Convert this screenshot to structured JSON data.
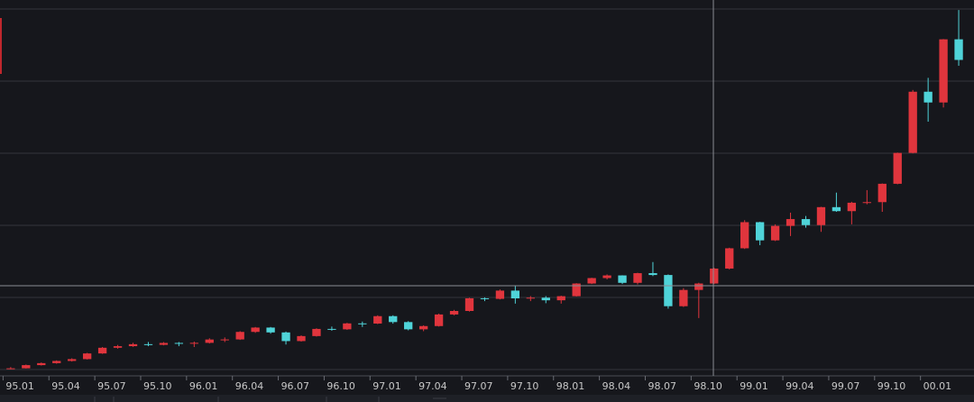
{
  "chart_data": {
    "type": "candlestick",
    "x": [
      0.5,
      1.5,
      2.5,
      3.5,
      4.5,
      5.5,
      6.5,
      7.5,
      8.5,
      9.5,
      10.5,
      11.5,
      12.5,
      13.5,
      14.5,
      15.5,
      16.5,
      17.5,
      18.5,
      19.5,
      20.5,
      21.5,
      22.5,
      23.5,
      24.5,
      25.5,
      26.5,
      27.5,
      28.5,
      29.5,
      30.5,
      31.5,
      32.5,
      33.5,
      34.5,
      35.5,
      36.5,
      37.5,
      38.5,
      39.5,
      40.5,
      41.5,
      42.5,
      43.5,
      44.5,
      45.5,
      46.5,
      47.5,
      48.5,
      49.5,
      50.5,
      51.5,
      52.5,
      53.5,
      54.5,
      55.5,
      56.5,
      57.5,
      58.5,
      59.5,
      60.5,
      61.5,
      62.5
    ],
    "open": [
      751,
      755,
      793,
      817,
      843,
      865,
      933,
      1001,
      1020,
      1044,
      1036,
      1059,
      1052,
      1060,
      1100,
      1101,
      1191,
      1243,
      1185,
      1081,
      1141,
      1227,
      1222,
      1293,
      1291,
      1380,
      1309,
      1222,
      1261,
      1400,
      1442,
      1594,
      1587,
      1686,
      1593,
      1601,
      1570,
      1619,
      1771,
      1836,
      1868,
      1779,
      1895,
      1873,
      1499,
      1694,
      1771,
      1950,
      2193,
      2506,
      2288,
      2461,
      2543,
      2471,
      2686,
      2638,
      2739,
      2746,
      2966,
      3336,
      4069,
      3940,
      4697
    ],
    "high": [
      770,
      800,
      825,
      850,
      875,
      940,
      1010,
      1035,
      1060,
      1070,
      1069,
      1070,
      1075,
      1115,
      1125,
      1200,
      1250,
      1250,
      1195,
      1150,
      1235,
      1255,
      1300,
      1315,
      1390,
      1390,
      1320,
      1270,
      1410,
      1455,
      1600,
      1605,
      1700,
      1745,
      1620,
      1620,
      1625,
      1775,
      1840,
      1880,
      1870,
      1900,
      2028,
      1880,
      1715,
      1780,
      1960,
      2200,
      2530,
      2510,
      2480,
      2620,
      2580,
      2690,
      2860,
      2750,
      2890,
      2970,
      3340,
      4090,
      4235,
      4700,
      5048
    ],
    "low": [
      743,
      752,
      788,
      810,
      836,
      860,
      928,
      990,
      1012,
      1020,
      1030,
      1020,
      1010,
      1052,
      1070,
      1095,
      1180,
      1170,
      1040,
      1075,
      1135,
      1205,
      1215,
      1250,
      1285,
      1290,
      1210,
      1200,
      1255,
      1390,
      1435,
      1560,
      1580,
      1530,
      1560,
      1535,
      1530,
      1615,
      1765,
      1820,
      1765,
      1760,
      1860,
      1470,
      1490,
      1357,
      1765,
      1940,
      2185,
      2230,
      2280,
      2340,
      2440,
      2390,
      2630,
      2480,
      2720,
      2630,
      2960,
      3330,
      3710,
      3880,
      4380
    ],
    "close": [
      755,
      793,
      817,
      843,
      865,
      933,
      1001,
      1020,
      1044,
      1036,
      1059,
      1052,
      1060,
      1100,
      1101,
      1191,
      1243,
      1185,
      1081,
      1141,
      1227,
      1222,
      1293,
      1291,
      1380,
      1309,
      1222,
      1261,
      1400,
      1442,
      1594,
      1587,
      1686,
      1593,
      1601,
      1570,
      1619,
      1771,
      1836,
      1868,
      1779,
      1895,
      1873,
      1499,
      1694,
      1771,
      1950,
      2193,
      2506,
      2288,
      2461,
      2543,
      2471,
      2686,
      2638,
      2739,
      2746,
      2966,
      3336,
      4069,
      3940,
      4697,
      4450
    ],
    "up_color": "#e0353d",
    "down_color": "#4fd3d8",
    "xlim": [
      -0.2,
      63.5
    ],
    "ylim": [
      740,
      5060
    ],
    "grid": true,
    "xticks": [
      {
        "value": 0,
        "label": "95.01"
      },
      {
        "value": 3,
        "label": "95.04"
      },
      {
        "value": 6,
        "label": "95.07"
      },
      {
        "value": 9,
        "label": "95.10"
      },
      {
        "value": 12,
        "label": "96.01"
      },
      {
        "value": 15,
        "label": "96.04"
      },
      {
        "value": 18,
        "label": "96.07"
      },
      {
        "value": 21,
        "label": "96.10"
      },
      {
        "value": 24,
        "label": "97.01"
      },
      {
        "value": 27,
        "label": "97.04"
      },
      {
        "value": 30,
        "label": "97.07"
      },
      {
        "value": 33,
        "label": "97.10"
      },
      {
        "value": 36,
        "label": "98.01"
      },
      {
        "value": 39,
        "label": "98.04"
      },
      {
        "value": 42,
        "label": "98.07"
      },
      {
        "value": 45,
        "label": "98.10"
      },
      {
        "value": 48,
        "label": "99.01"
      },
      {
        "value": 51,
        "label": "99.04"
      },
      {
        "value": 54,
        "label": "99.07"
      },
      {
        "value": 57,
        "label": "99.10"
      },
      {
        "value": 60,
        "label": "00.01"
      }
    ]
  }
}
